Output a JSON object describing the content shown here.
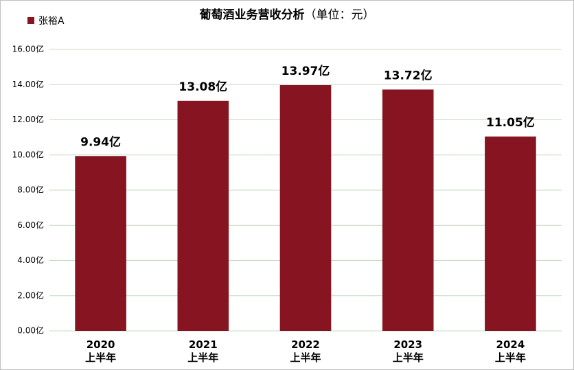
{
  "chart_data": {
    "type": "bar",
    "title": "葡萄酒业务营收分析",
    "subtitle": "（单位：元）",
    "categories": [
      "2020\n上半年",
      "2021\n上半年",
      "2022\n上半年",
      "2023\n上半年",
      "2024\n上半年"
    ],
    "series": [
      {
        "name": "张裕A",
        "color": "#861421",
        "values": [
          9.94,
          13.08,
          13.97,
          13.72,
          11.05
        ],
        "value_labels": [
          "9.94亿",
          "13.08亿",
          "13.97亿",
          "13.72亿",
          "11.05亿"
        ]
      }
    ],
    "ylim": [
      0,
      16
    ],
    "yticks": [
      {
        "value": 0,
        "label": "0.00亿"
      },
      {
        "value": 2,
        "label": "2.00亿"
      },
      {
        "value": 4,
        "label": "4.00亿"
      },
      {
        "value": 6,
        "label": "6.00亿"
      },
      {
        "value": 8,
        "label": "8.00亿"
      },
      {
        "value": 10,
        "label": "10.00亿"
      },
      {
        "value": 12,
        "label": "12.00亿"
      },
      {
        "value": 14,
        "label": "14.00亿"
      },
      {
        "value": 16,
        "label": "16.00亿"
      }
    ],
    "grid": true,
    "legend": "top-left"
  }
}
